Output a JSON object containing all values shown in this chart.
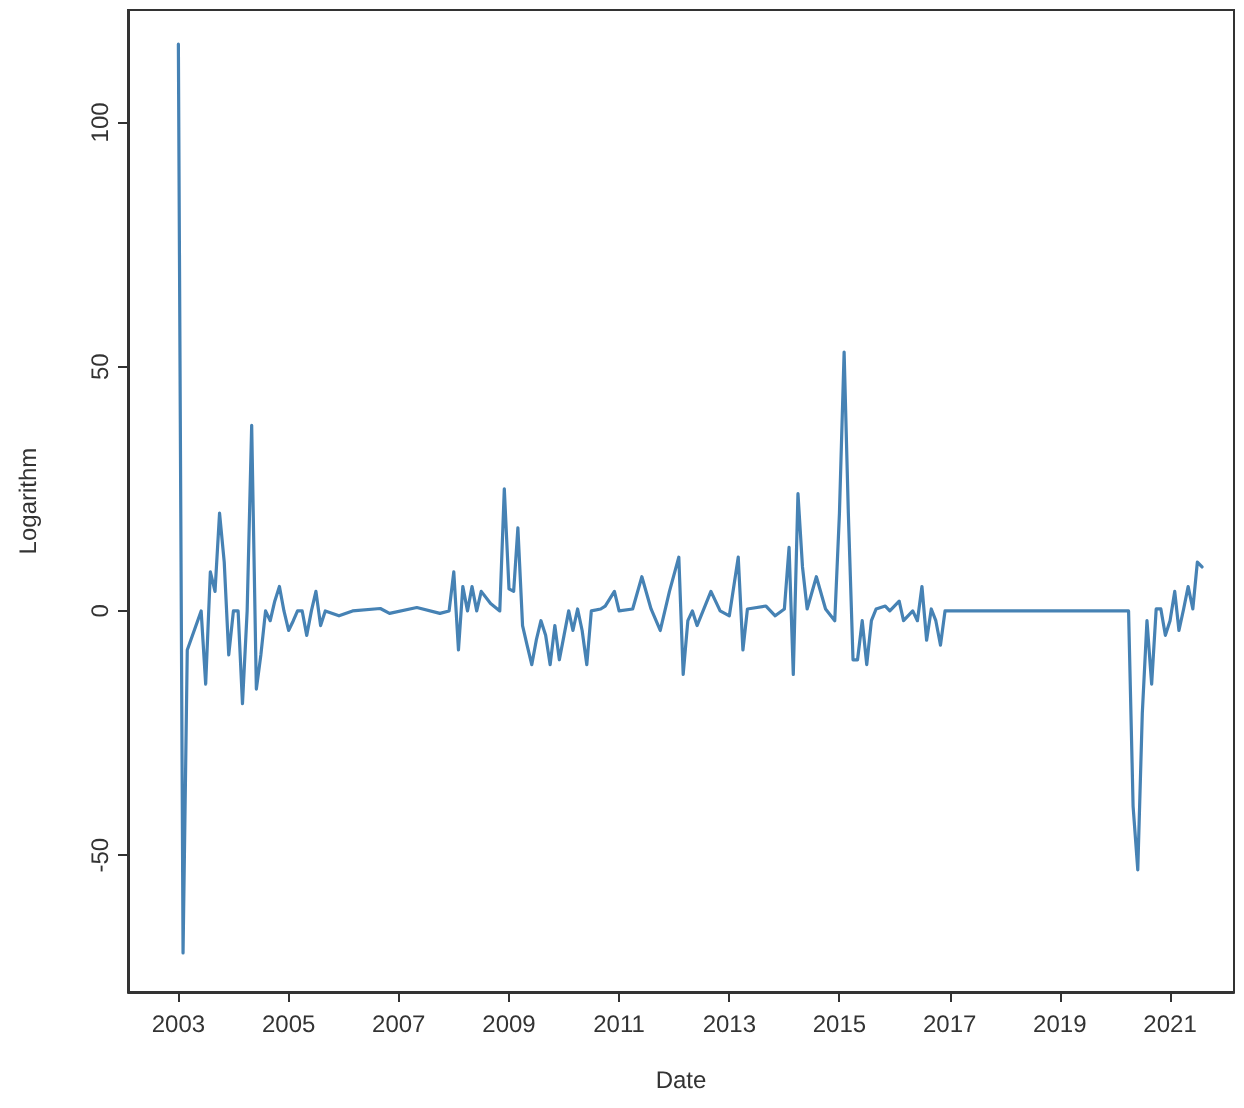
{
  "chart_data": {
    "type": "line",
    "xlabel": "Date",
    "ylabel": "Logarithm",
    "x": [
      "2003-01",
      "2003-02",
      "2003-03",
      "2003-06",
      "2003-07",
      "2003-08",
      "2003-09",
      "2003-10",
      "2003-11",
      "2003-12",
      "2004-01",
      "2004-02",
      "2004-03",
      "2004-04",
      "2004-05",
      "2004-06",
      "2004-07",
      "2004-08",
      "2004-09",
      "2004-10",
      "2004-11",
      "2004-12",
      "2005-01",
      "2005-02",
      "2005-03",
      "2005-04",
      "2005-05",
      "2005-06",
      "2005-07",
      "2005-08",
      "2005-09",
      "2005-12",
      "2006-03",
      "2006-09",
      "2006-11",
      "2007-05",
      "2007-10",
      "2007-12",
      "2008-01",
      "2008-02",
      "2008-03",
      "2008-04",
      "2008-05",
      "2008-06",
      "2008-07",
      "2008-09",
      "2008-11",
      "2008-12",
      "2009-01",
      "2009-02",
      "2009-03",
      "2009-04",
      "2009-05",
      "2009-06",
      "2009-07",
      "2009-08",
      "2009-09",
      "2009-10",
      "2009-11",
      "2009-12",
      "2010-01",
      "2010-02",
      "2010-03",
      "2010-04",
      "2010-05",
      "2010-06",
      "2010-07",
      "2010-09",
      "2010-10",
      "2010-12",
      "2011-01",
      "2011-04",
      "2011-06",
      "2011-08",
      "2011-10",
      "2011-12",
      "2012-02",
      "2012-03",
      "2012-04",
      "2012-05",
      "2012-06",
      "2012-09",
      "2012-11",
      "2013-01",
      "2013-03",
      "2013-04",
      "2013-05",
      "2013-09",
      "2013-11",
      "2014-01",
      "2014-02",
      "2014-03",
      "2014-04",
      "2014-05",
      "2014-06",
      "2014-08",
      "2014-10",
      "2014-12",
      "2015-01",
      "2015-02",
      "2015-03",
      "2015-04",
      "2015-05",
      "2015-06",
      "2015-07",
      "2015-08",
      "2015-09",
      "2015-11",
      "2015-12",
      "2016-02",
      "2016-03",
      "2016-05",
      "2016-06",
      "2016-07",
      "2016-08",
      "2016-09",
      "2016-10",
      "2016-11",
      "2016-12",
      "2020-04",
      "2020-05",
      "2020-06",
      "2020-07",
      "2020-08",
      "2020-09",
      "2020-10",
      "2020-11",
      "2020-12",
      "2021-01",
      "2021-02",
      "2021-03",
      "2021-04",
      "2021-05",
      "2021-06",
      "2021-07",
      "2021-08"
    ],
    "series": [
      {
        "color": "#4682b4",
        "values": [
          116,
          -70,
          -8,
          0,
          -15,
          8,
          4,
          20,
          10,
          -9,
          0,
          0,
          -19,
          0,
          38,
          -16,
          -9,
          0,
          -2,
          2,
          5,
          0,
          -4,
          -2,
          0,
          0,
          -5,
          0,
          4,
          -3,
          0,
          -1,
          0,
          0.5,
          -0.5,
          0.7,
          -0.5,
          0,
          8,
          -8,
          5,
          0,
          5,
          0,
          4,
          1.5,
          0,
          25,
          4.5,
          4,
          17,
          -3,
          -7,
          -11,
          -6,
          -2,
          -5,
          -11,
          -3,
          -10,
          -5,
          0,
          -4,
          0.4,
          -4,
          -11,
          0,
          0.4,
          1,
          4,
          0,
          0.4,
          7,
          0.4,
          -4,
          4,
          11,
          -13,
          -2,
          0,
          -3,
          4,
          0,
          -1,
          11,
          -8,
          0.4,
          1,
          -1,
          0.4,
          13,
          -13,
          24,
          9,
          0.4,
          7,
          0.4,
          -2,
          20,
          53,
          20,
          -10,
          -10,
          -2,
          -11,
          -2,
          0.4,
          1,
          0,
          2,
          -2,
          0,
          -2,
          5,
          -6,
          0.4,
          -2,
          -7,
          0,
          0,
          -40,
          -53,
          -21,
          -2,
          -15,
          0.4,
          0.4,
          -5,
          -2,
          4,
          -4,
          0.4,
          5,
          0.4,
          10,
          9
        ]
      }
    ],
    "xlim": [
      "2002-02",
      "2022-03"
    ],
    "xticks": [
      "2003",
      "2005",
      "2007",
      "2009",
      "2011",
      "2013",
      "2015",
      "2017",
      "2019",
      "2021"
    ],
    "ylim": [
      -78,
      123
    ],
    "yticks": [
      -50,
      0,
      50,
      100
    ],
    "grid": false,
    "marker": "none",
    "line_style": "solid"
  }
}
